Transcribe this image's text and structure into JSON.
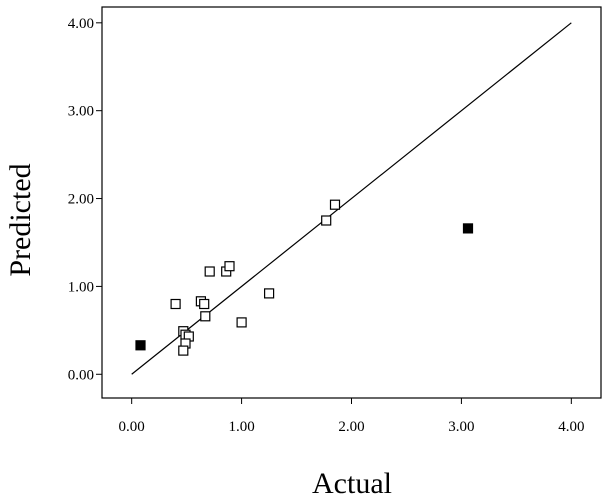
{
  "chart_data": {
    "type": "scatter",
    "xlabel": "Actual",
    "ylabel": "Predicted",
    "xlim": [
      -0.27,
      4.27
    ],
    "ylim": [
      -0.27,
      4.18
    ],
    "x_ticks": [
      "0.00",
      "1.00",
      "2.00",
      "3.00",
      "4.00"
    ],
    "y_ticks": [
      "0.00",
      "1.00",
      "2.00",
      "3.00",
      "4.00"
    ],
    "grid": false,
    "legend": "none",
    "reference_line": {
      "x": [
        0.0,
        4.0
      ],
      "y": [
        0.0,
        4.0
      ]
    },
    "series": [
      {
        "marker": "open-square",
        "points": [
          {
            "x": 0.4,
            "y": 0.8
          },
          {
            "x": 0.47,
            "y": 0.49
          },
          {
            "x": 0.49,
            "y": 0.45
          },
          {
            "x": 0.52,
            "y": 0.43
          },
          {
            "x": 0.49,
            "y": 0.35
          },
          {
            "x": 0.47,
            "y": 0.27
          },
          {
            "x": 0.63,
            "y": 0.83
          },
          {
            "x": 0.66,
            "y": 0.8
          },
          {
            "x": 0.67,
            "y": 0.66
          },
          {
            "x": 0.71,
            "y": 1.17
          },
          {
            "x": 0.86,
            "y": 1.17
          },
          {
            "x": 0.89,
            "y": 1.23
          },
          {
            "x": 1.0,
            "y": 0.59
          },
          {
            "x": 1.25,
            "y": 0.92
          },
          {
            "x": 1.77,
            "y": 1.75
          },
          {
            "x": 1.85,
            "y": 1.93
          }
        ]
      },
      {
        "marker": "filled-square",
        "points": [
          {
            "x": 0.08,
            "y": 0.33
          },
          {
            "x": 3.06,
            "y": 1.66
          }
        ]
      }
    ]
  },
  "colors": {
    "marks": "#000000",
    "open_fill": "#ffffff",
    "background": "#ffffff"
  }
}
